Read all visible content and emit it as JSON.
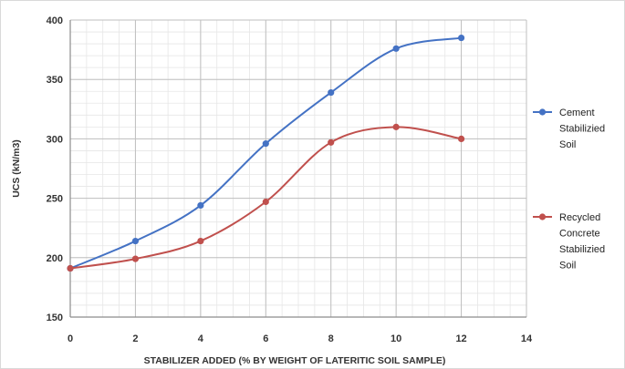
{
  "chart_data": {
    "type": "line",
    "xlabel": "STABILIZER ADDED (% BY WEIGHT OF LATERITIC SOIL SAMPLE)",
    "ylabel": "UCS (kN/m3)",
    "xlim": [
      0,
      14
    ],
    "ylim": [
      150,
      400
    ],
    "x_ticks": [
      0,
      2,
      4,
      6,
      8,
      10,
      12,
      14
    ],
    "y_ticks": [
      150,
      200,
      250,
      300,
      350,
      400
    ],
    "x_tick_labels": [
      "0",
      "2",
      "4",
      "6",
      "8",
      "10",
      "12",
      "14"
    ],
    "y_tick_labels": [
      "150",
      "200",
      "250",
      "300",
      "350",
      "400"
    ],
    "minor_grid_step": 0.5,
    "minor_grid_y_step": 10,
    "grid": true,
    "legend_position": "right",
    "x": [
      0,
      2,
      4,
      6,
      8,
      10,
      12
    ],
    "series": [
      {
        "name": "Cement Stabilizied Soil",
        "legend_lines": [
          "Cement",
          "Stabilizied",
          "Soil"
        ],
        "color": "#4472c4",
        "values": [
          191,
          214,
          244,
          296,
          339,
          376,
          385
        ]
      },
      {
        "name": "Recycled Concrete Stabilizied Soil",
        "legend_lines": [
          "Recycled",
          "Concrete",
          "Stabilizied",
          "Soil"
        ],
        "color": "#c0504d",
        "values": [
          191,
          199,
          214,
          247,
          297,
          310,
          300
        ]
      }
    ]
  }
}
